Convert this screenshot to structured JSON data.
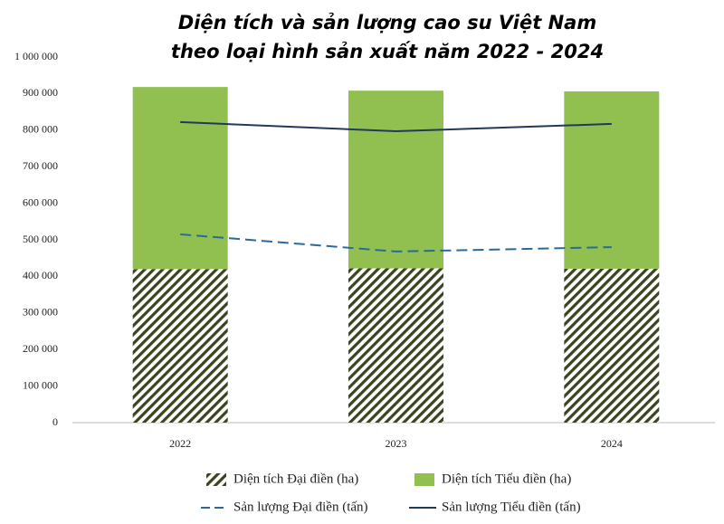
{
  "chart_data": {
    "type": "bar",
    "stacked": true,
    "title": [
      "Diện tích và sản lượng cao su Việt Nam",
      "theo loại hình sản xuất năm 2022 - 2024"
    ],
    "categories": [
      "2022",
      "2023",
      "2024"
    ],
    "series": [
      {
        "name": "Diện tích Đại điền (ha)",
        "type": "bar",
        "pattern": "hatch",
        "color": "#3a4420",
        "values": [
          420000,
          422000,
          421000
        ]
      },
      {
        "name": "Diện tích Tiểu điền (ha)",
        "type": "bar",
        "color": "#92c050",
        "values": [
          498000,
          486000,
          485000
        ]
      },
      {
        "name": "Sản lượng Đại điền (tấn)",
        "type": "line",
        "line_style": "dashed",
        "color": "#2a6a9a",
        "values": [
          515000,
          468000,
          480000
        ]
      },
      {
        "name": "Sản lượng Tiểu điền (tấn)",
        "type": "line",
        "line_style": "solid",
        "color": "#1f3a5c",
        "values": [
          822000,
          797000,
          817000
        ]
      }
    ],
    "ylim": [
      0,
      1000000
    ],
    "yticks": [
      0,
      {
        "value": 100000,
        "label": "100 000"
      },
      {
        "value": 200000,
        "label": "200 000"
      },
      {
        "value": 300000,
        "label": "300 000"
      },
      {
        "value": 400000,
        "label": "400 000"
      },
      {
        "value": 500000,
        "label": "500 000"
      },
      {
        "value": 600000,
        "label": "600 000"
      },
      {
        "value": 700000,
        "label": "700 000"
      },
      {
        "value": 800000,
        "label": "800 000"
      },
      {
        "value": 900000,
        "label": "900 000"
      },
      {
        "value": 1000000,
        "label": "1 000 000"
      }
    ],
    "grid": false,
    "legend": "bottom"
  }
}
